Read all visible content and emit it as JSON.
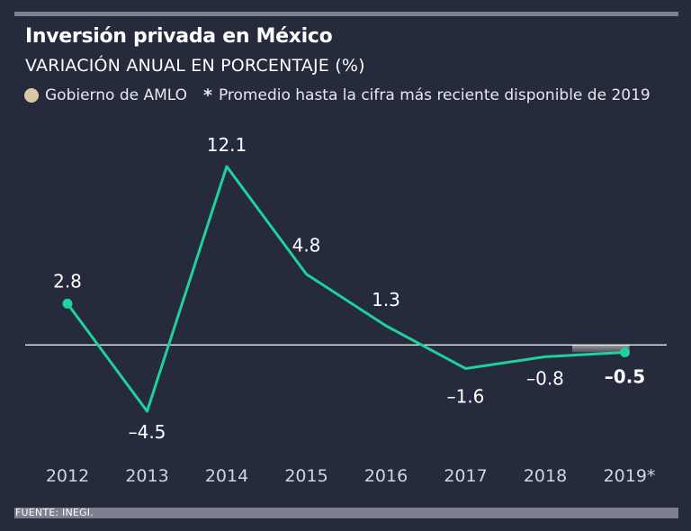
{
  "title": "Inversión privada en México",
  "subtitle": "VARIACIÓN ANUAL EN PORCENTAJE (%)",
  "legend": {
    "amlo_label": "Gobierno de AMLO",
    "amlo_color": "#d9c7a6",
    "note_symbol": "*",
    "note_label": "Promedio hasta la cifra más reciente disponible de 2019"
  },
  "colors": {
    "line": "#1fd19a",
    "background": "#252a3c",
    "zero_line": "#ffffff"
  },
  "chart_data": {
    "type": "line",
    "title": "Inversión privada en México",
    "ylabel": "Variación anual en porcentaje (%)",
    "categories": [
      "2012",
      "2013",
      "2014",
      "2015",
      "2016",
      "2017",
      "2018",
      "2019*"
    ],
    "values": [
      2.8,
      -4.5,
      12.1,
      4.8,
      1.3,
      -1.6,
      -0.8,
      -0.5
    ],
    "value_labels": [
      "2.8",
      "–4.5",
      "12.1",
      "4.8",
      "1.3",
      "–1.6",
      "–0.8",
      "–0.5"
    ],
    "ylim": [
      -4.5,
      12.1
    ],
    "grid": false,
    "zero_line": true,
    "markers": [
      "2012",
      "2019*"
    ],
    "highlight_period": [
      "2018",
      "2019*"
    ]
  },
  "footer": {
    "source": "FUENTE: INEGI."
  }
}
